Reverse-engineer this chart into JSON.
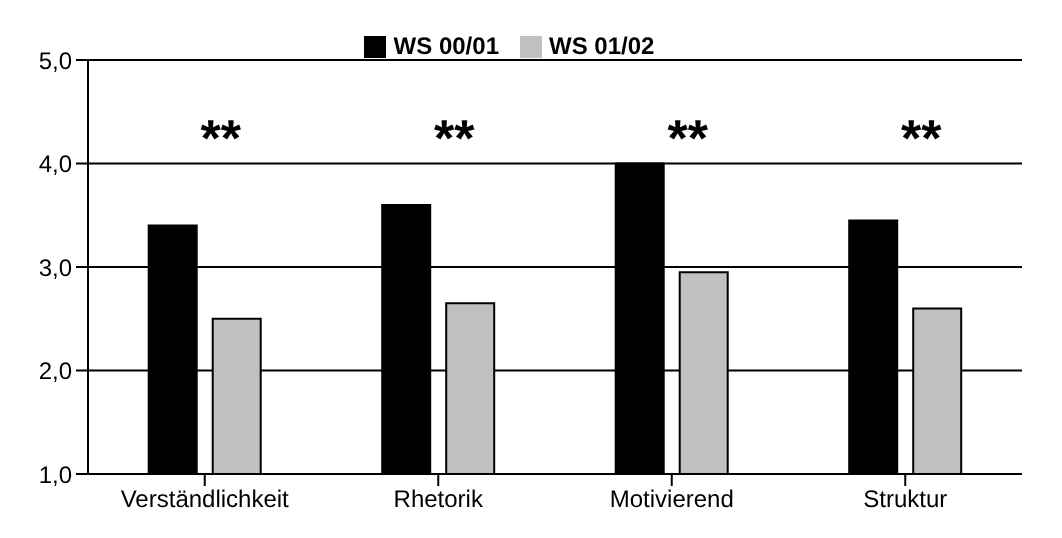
{
  "chart_data": {
    "type": "bar",
    "categories": [
      "Verständlichkeit",
      "Rhetorik",
      "Motivierend",
      "Struktur"
    ],
    "series": [
      {
        "name": "WS 00/01",
        "color": "#000000",
        "values": [
          3.4,
          3.6,
          4.0,
          3.45
        ]
      },
      {
        "name": "WS 01/02",
        "color": "#c0c0c0",
        "values": [
          2.5,
          2.65,
          2.95,
          2.6
        ]
      }
    ],
    "ylim": [
      1,
      5
    ],
    "yticks": [
      {
        "value": 1,
        "label": "1,0"
      },
      {
        "value": 2,
        "label": "2,0"
      },
      {
        "value": 3,
        "label": "3,0"
      },
      {
        "value": 4,
        "label": "4,0"
      },
      {
        "value": 5,
        "label": "5,0"
      }
    ],
    "grid": "y",
    "legend": "top",
    "annotations": [
      "**",
      "**",
      "**",
      "**"
    ]
  }
}
